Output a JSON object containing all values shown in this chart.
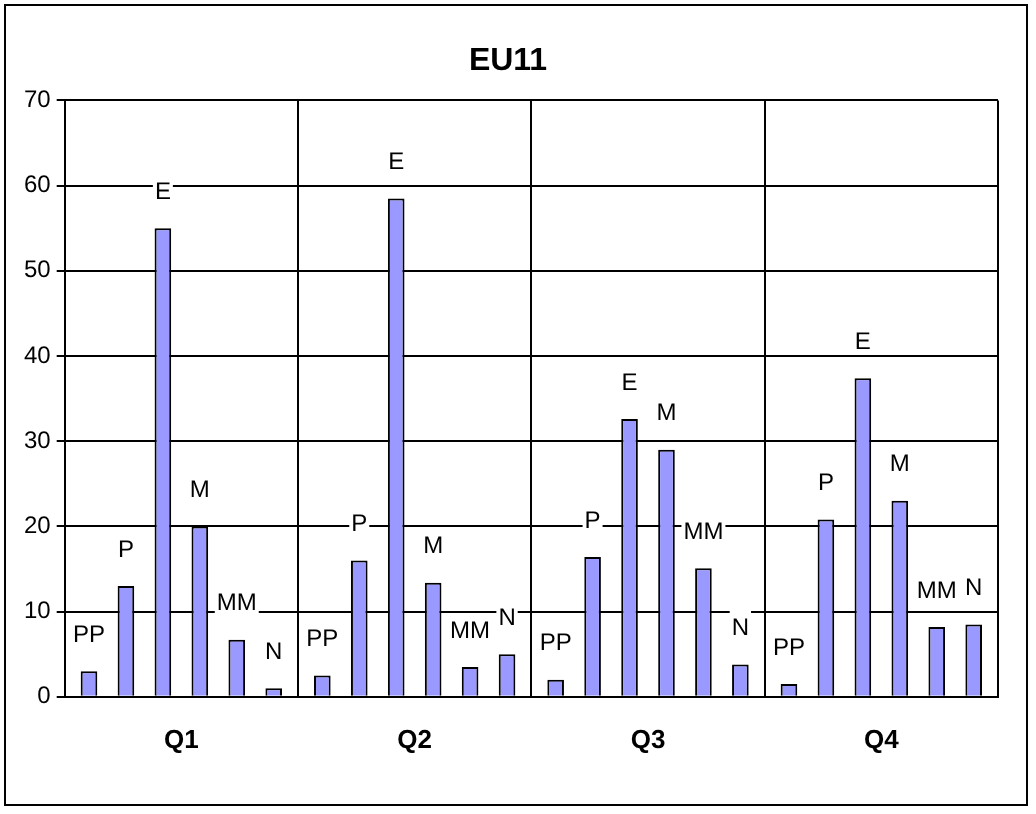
{
  "chart_data": {
    "type": "bar",
    "title": "EU11",
    "categories": [
      "Q1",
      "Q2",
      "Q3",
      "Q4"
    ],
    "series": [
      {
        "name": "PP",
        "color": "#9999ff",
        "values": [
          3,
          2.5,
          2,
          1.5
        ]
      },
      {
        "name": "P",
        "color": "#9999ff",
        "values": [
          13,
          16,
          16.4,
          20.8
        ]
      },
      {
        "name": "E",
        "color": "#9999ff",
        "values": [
          55,
          58.5,
          32.6,
          37.4
        ]
      },
      {
        "name": "M",
        "color": "#9999ff",
        "values": [
          20,
          13.4,
          29,
          23
        ]
      },
      {
        "name": "MM",
        "color": "#9999ff",
        "values": [
          6.7,
          3.5,
          15.1,
          8.2
        ]
      },
      {
        "name": "N",
        "color": "#9999ff",
        "values": [
          1,
          5,
          3.8,
          8.5
        ]
      }
    ],
    "ylim": [
      0,
      70
    ],
    "yticks": [
      0,
      10,
      20,
      30,
      40,
      50,
      60,
      70
    ],
    "grid": true,
    "legend": false
  }
}
